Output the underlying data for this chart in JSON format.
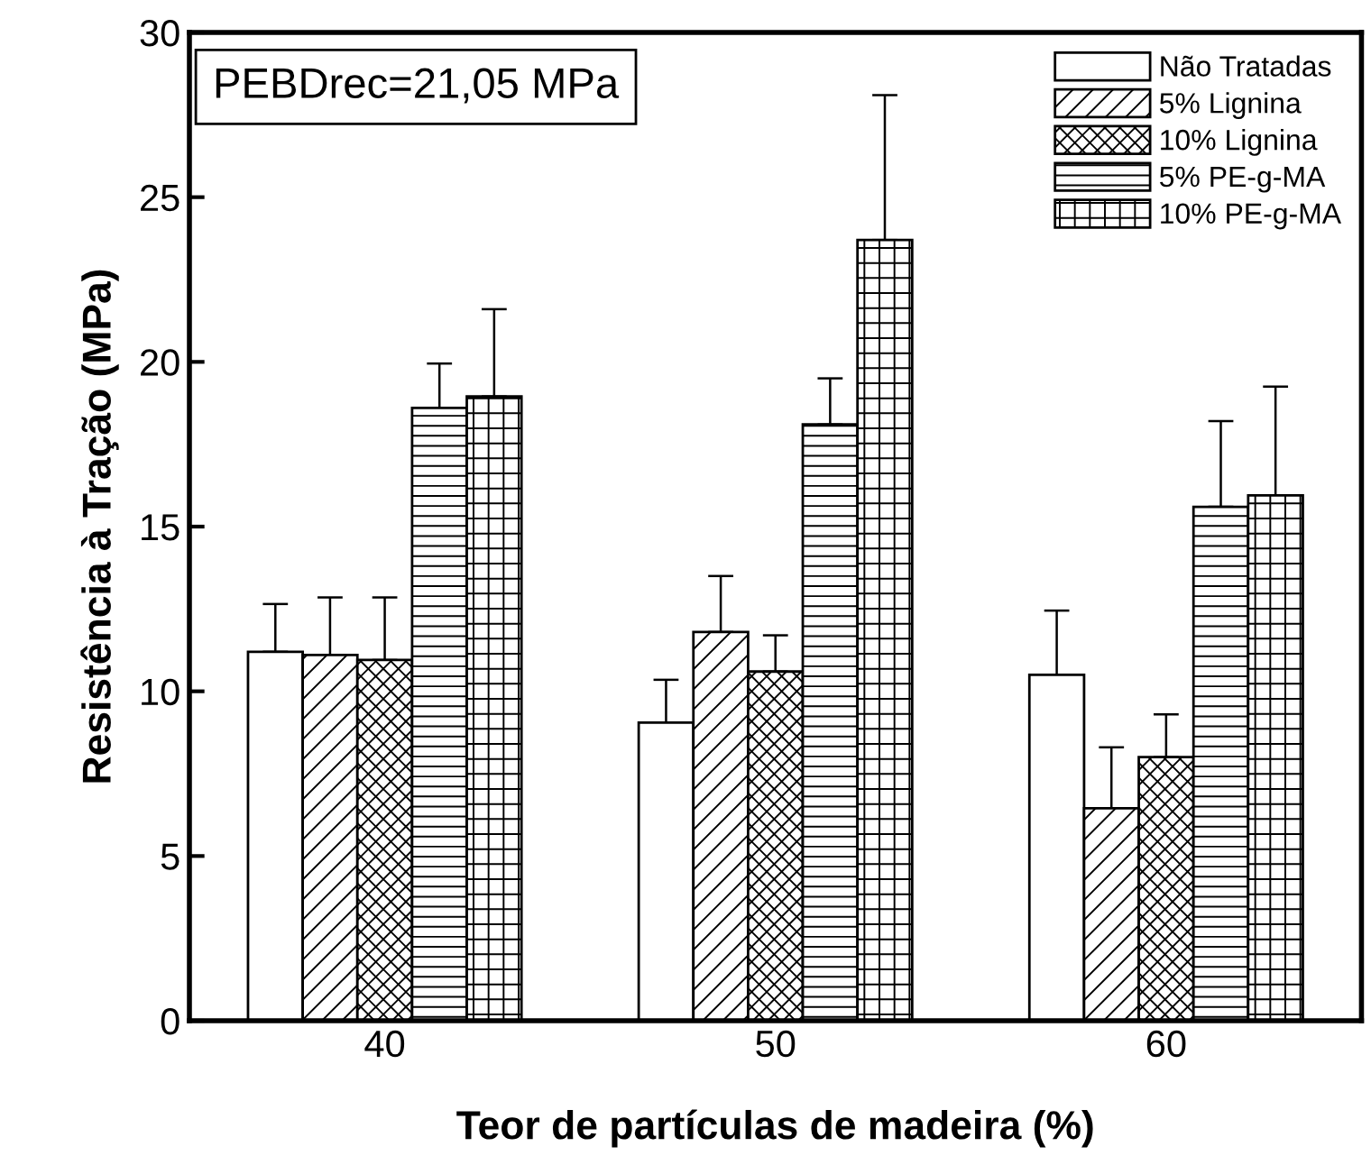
{
  "chart_data": {
    "type": "bar",
    "xlabel": "Teor de partículas de madeira (%)",
    "ylabel": "Resistência à Tração (MPa)",
    "categories": [
      "40",
      "50",
      "60"
    ],
    "series": [
      {
        "name": "Não Tratadas",
        "color": "#ffffff",
        "values": [
          11.2,
          9.05,
          10.5
        ],
        "errors": [
          [
            11.2,
            12.65
          ],
          [
            9.05,
            10.35
          ],
          [
            10.5,
            12.45
          ]
        ]
      },
      {
        "name": "5% Lignina",
        "color": "#000000",
        "values": [
          11.1,
          11.8,
          6.45
        ],
        "errors": [
          [
            11.1,
            12.85
          ],
          [
            11.8,
            13.5
          ],
          [
            6.45,
            8.3
          ]
        ]
      },
      {
        "name": "10% Lignina",
        "color": "#000000",
        "values": [
          10.95,
          10.6,
          8.0
        ],
        "errors": [
          [
            10.95,
            12.85
          ],
          [
            10.6,
            11.7
          ],
          [
            8.0,
            9.3
          ]
        ]
      },
      {
        "name": "5% PE-g-MA",
        "color": "#000000",
        "values": [
          18.6,
          18.1,
          15.6
        ],
        "errors": [
          [
            18.6,
            19.95
          ],
          [
            18.1,
            19.5
          ],
          [
            15.6,
            18.2
          ]
        ]
      },
      {
        "name": "10% PE-g-MA",
        "color": "#000000",
        "values": [
          18.95,
          23.7,
          15.95
        ],
        "errors": [
          [
            18.95,
            21.6
          ],
          [
            23.7,
            28.1
          ],
          [
            15.95,
            19.25
          ]
        ]
      }
    ],
    "ylim": [
      0,
      30
    ],
    "yticks": [
      0,
      5,
      10,
      15,
      20,
      25,
      30
    ],
    "grid": false,
    "legend": "top right",
    "annotations": [
      "PEBDrec=21,05 MPa"
    ]
  }
}
